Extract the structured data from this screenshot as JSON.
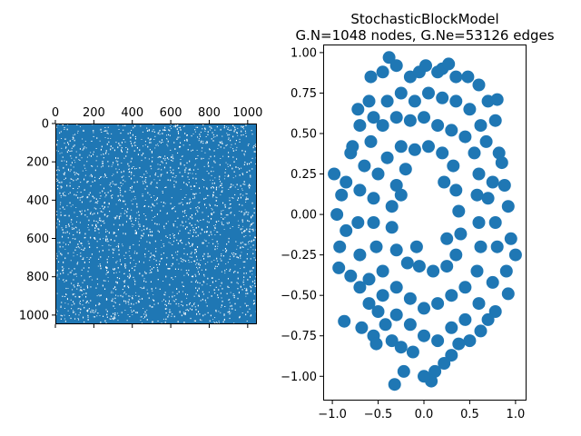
{
  "chart_data": [
    {
      "type": "heatmap",
      "matrix_size": 1048,
      "color": "#1f77b4",
      "gap_color": "#ffffff",
      "fill_fraction": 0.9,
      "xticks": [
        0,
        200,
        400,
        600,
        800,
        1000
      ],
      "yticks": [
        0,
        200,
        400,
        600,
        800,
        1000
      ],
      "xlim": [
        0,
        1048
      ],
      "ylim": [
        0,
        1048
      ],
      "xtick_position": "top"
    },
    {
      "type": "scatter",
      "title": "StochasticBlockModel",
      "subtitle": "G.N=1048 nodes, G.Ne=53126 edges",
      "color": "#1f77b4",
      "n_points": 1048,
      "xlim": [
        -1.1,
        1.12
      ],
      "ylim": [
        -1.15,
        1.05
      ],
      "xticks": [
        -1.0,
        -0.5,
        0.0,
        0.5,
        1.0
      ],
      "xtick_labels": [
        "−1.0",
        "−0.5",
        "0.0",
        "0.5",
        "1.0"
      ],
      "yticks": [
        1.0,
        0.75,
        0.5,
        0.25,
        0.0,
        -0.25,
        -0.5,
        -0.75,
        -1.0
      ],
      "ytick_labels": [
        "1.00",
        "0.75",
        "0.50",
        "0.25",
        "0.00",
        "−0.25",
        "−0.50",
        "−0.75",
        "−1.00"
      ],
      "points": [
        [
          -0.98,
          0.25
        ],
        [
          -0.95,
          0.0
        ],
        [
          -0.92,
          -0.2
        ],
        [
          -0.93,
          -0.33
        ],
        [
          -0.87,
          -0.66
        ],
        [
          -0.8,
          0.38
        ],
        [
          -0.78,
          0.42
        ],
        [
          -0.72,
          0.65
        ],
        [
          -0.7,
          0.55
        ],
        [
          -0.68,
          -0.7
        ],
        [
          -0.6,
          0.7
        ],
        [
          -0.58,
          0.85
        ],
        [
          -0.55,
          -0.75
        ],
        [
          -0.52,
          -0.8
        ],
        [
          -0.45,
          0.88
        ],
        [
          -0.38,
          0.97
        ],
        [
          -0.3,
          0.92
        ],
        [
          -0.32,
          -1.05
        ],
        [
          -0.22,
          -0.97
        ],
        [
          -0.15,
          0.85
        ],
        [
          -0.05,
          0.88
        ],
        [
          0.02,
          0.92
        ],
        [
          0.15,
          0.88
        ],
        [
          0.2,
          0.9
        ],
        [
          0.27,
          0.93
        ],
        [
          0.35,
          0.85
        ],
        [
          0.48,
          0.85
        ],
        [
          0.6,
          0.8
        ],
        [
          0.7,
          0.7
        ],
        [
          0.8,
          0.71
        ],
        [
          0.78,
          0.58
        ],
        [
          0.82,
          0.38
        ],
        [
          0.85,
          0.32
        ],
        [
          0.88,
          0.18
        ],
        [
          0.92,
          0.05
        ],
        [
          0.95,
          -0.15
        ],
        [
          1.0,
          -0.25
        ],
        [
          0.9,
          -0.35
        ],
        [
          0.92,
          -0.49
        ],
        [
          0.78,
          -0.6
        ],
        [
          0.7,
          -0.65
        ],
        [
          0.62,
          -0.72
        ],
        [
          0.5,
          -0.78
        ],
        [
          0.38,
          -0.8
        ],
        [
          0.3,
          -0.87
        ],
        [
          0.22,
          -0.92
        ],
        [
          0.12,
          -0.97
        ],
        [
          0.08,
          -1.03
        ],
        [
          0.0,
          -1.0
        ],
        [
          -0.12,
          -0.85
        ],
        [
          -0.25,
          -0.82
        ],
        [
          -0.35,
          -0.78
        ],
        [
          -0.42,
          -0.68
        ],
        [
          -0.5,
          -0.6
        ],
        [
          -0.6,
          -0.55
        ],
        [
          -0.7,
          -0.45
        ],
        [
          -0.8,
          -0.38
        ],
        [
          -0.85,
          -0.1
        ],
        [
          -0.9,
          0.12
        ],
        [
          -0.85,
          0.2
        ],
        [
          -0.55,
          0.6
        ],
        [
          -0.4,
          0.7
        ],
        [
          -0.25,
          0.75
        ],
        [
          -0.1,
          0.7
        ],
        [
          0.05,
          0.75
        ],
        [
          0.2,
          0.72
        ],
        [
          0.35,
          0.7
        ],
        [
          0.5,
          0.65
        ],
        [
          0.62,
          0.55
        ],
        [
          0.68,
          0.45
        ],
        [
          0.75,
          0.2
        ],
        [
          0.7,
          0.1
        ],
        [
          0.78,
          -0.05
        ],
        [
          0.8,
          -0.2
        ],
        [
          0.75,
          -0.42
        ],
        [
          0.6,
          -0.55
        ],
        [
          0.45,
          -0.65
        ],
        [
          0.3,
          -0.7
        ],
        [
          0.15,
          -0.78
        ],
        [
          0.0,
          -0.75
        ],
        [
          -0.15,
          -0.68
        ],
        [
          -0.3,
          -0.62
        ],
        [
          -0.45,
          -0.5
        ],
        [
          -0.6,
          -0.4
        ],
        [
          -0.7,
          -0.25
        ],
        [
          -0.72,
          -0.05
        ],
        [
          -0.7,
          0.15
        ],
        [
          -0.65,
          0.3
        ],
        [
          -0.58,
          0.45
        ],
        [
          -0.45,
          0.55
        ],
        [
          -0.3,
          0.6
        ],
        [
          -0.15,
          0.58
        ],
        [
          0.0,
          0.6
        ],
        [
          0.15,
          0.55
        ],
        [
          0.3,
          0.52
        ],
        [
          0.45,
          0.48
        ],
        [
          0.55,
          0.38
        ],
        [
          0.6,
          0.25
        ],
        [
          0.58,
          0.12
        ],
        [
          0.6,
          -0.05
        ],
        [
          0.62,
          -0.2
        ],
        [
          0.58,
          -0.35
        ],
        [
          0.45,
          -0.45
        ],
        [
          0.3,
          -0.5
        ],
        [
          0.15,
          -0.55
        ],
        [
          0.0,
          -0.58
        ],
        [
          -0.15,
          -0.52
        ],
        [
          -0.3,
          -0.45
        ],
        [
          -0.45,
          -0.35
        ],
        [
          -0.52,
          -0.2
        ],
        [
          -0.55,
          -0.05
        ],
        [
          -0.55,
          0.1
        ],
        [
          -0.5,
          0.25
        ],
        [
          -0.4,
          0.35
        ],
        [
          -0.25,
          0.42
        ],
        [
          -0.1,
          0.4
        ],
        [
          0.05,
          0.42
        ],
        [
          0.2,
          0.38
        ],
        [
          0.32,
          0.3
        ],
        [
          0.35,
          0.15
        ],
        [
          0.38,
          0.02
        ],
        [
          0.4,
          -0.12
        ],
        [
          0.35,
          -0.25
        ],
        [
          0.25,
          -0.32
        ],
        [
          0.1,
          -0.35
        ],
        [
          -0.05,
          -0.32
        ],
        [
          -0.18,
          -0.3
        ],
        [
          -0.3,
          -0.22
        ],
        [
          -0.35,
          -0.08
        ],
        [
          -0.35,
          0.05
        ],
        [
          -0.3,
          0.18
        ],
        [
          -0.2,
          0.28
        ],
        [
          0.22,
          0.2
        ],
        [
          0.25,
          -0.15
        ],
        [
          -0.08,
          -0.2
        ],
        [
          -0.25,
          0.12
        ]
      ]
    }
  ]
}
